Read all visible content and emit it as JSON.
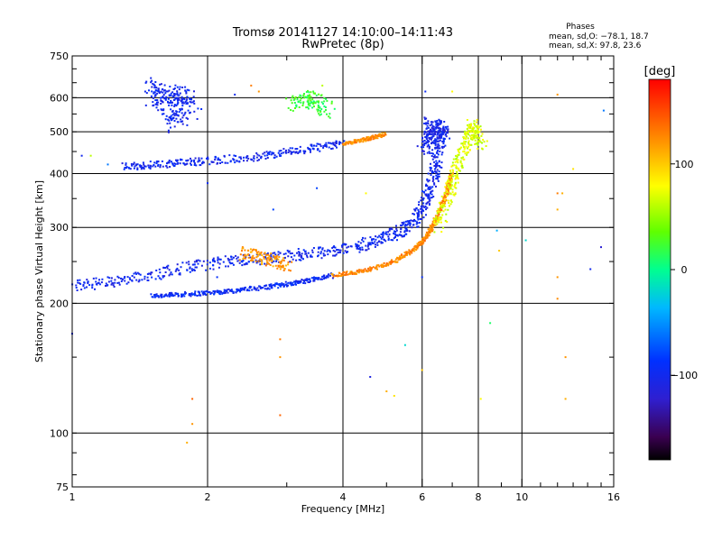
{
  "chart_data": {
    "type": "scatter",
    "title": "Tromsø 20141127 14:10:00–14:11:43",
    "subtitle": "RwPretec (8p)",
    "xlabel": "Frequency [MHz]",
    "ylabel": "Stationary phase Virtual Height [km]",
    "x_scale": "log",
    "y_scale": "log",
    "xlim": [
      1,
      16
    ],
    "ylim": [
      75,
      750
    ],
    "x_ticks": [
      1,
      2,
      4,
      6,
      8,
      10,
      16
    ],
    "y_ticks": [
      75,
      100,
      200,
      300,
      400,
      500,
      600,
      750
    ],
    "grid": true,
    "phase_stats": {
      "heading": "Phases",
      "o_line": "mean, sd,O: −78.1, 18.7",
      "x_line": "mean, sd,X:  97.8, 23.6"
    },
    "colorbar": {
      "label": "[deg]",
      "range": [
        -180,
        180
      ],
      "ticks": [
        {
          "value": 100,
          "label": "100"
        },
        {
          "value": 0,
          "label": "0"
        },
        {
          "value": -100,
          "label": "−100"
        }
      ]
    },
    "traces": [
      {
        "phase": -95,
        "spread": 0.012,
        "points": [
          [
            1.5,
            208
          ],
          [
            1.8,
            210
          ],
          [
            2.2,
            213
          ],
          [
            2.7,
            218
          ],
          [
            3.2,
            224
          ],
          [
            3.8,
            232
          ]
        ]
      },
      {
        "phase": -100,
        "spread": 0.03,
        "points": [
          [
            1.0,
            220
          ],
          [
            1.3,
            225
          ],
          [
            1.7,
            240
          ],
          [
            2.2,
            250
          ],
          [
            2.8,
            255
          ],
          [
            3.5,
            262
          ],
          [
            4.3,
            270
          ],
          [
            5.0,
            285
          ],
          [
            5.6,
            300
          ],
          [
            6.0,
            330
          ],
          [
            6.3,
            380
          ],
          [
            6.5,
            440
          ],
          [
            6.7,
            520
          ]
        ]
      },
      {
        "phase": 125,
        "spread": 0.01,
        "points": [
          [
            3.8,
            232
          ],
          [
            4.5,
            238
          ],
          [
            5.2,
            250
          ],
          [
            5.8,
            268
          ],
          [
            6.2,
            290
          ],
          [
            6.5,
            320
          ],
          [
            6.8,
            360
          ],
          [
            7.0,
            400
          ]
        ]
      },
      {
        "phase": 120,
        "spread": 0.035,
        "points": [
          [
            2.4,
            262
          ],
          [
            2.7,
            255
          ],
          [
            3.0,
            245
          ]
        ]
      },
      {
        "phase": 70,
        "spread": 0.03,
        "points": [
          [
            6.5,
            300
          ],
          [
            6.9,
            360
          ],
          [
            7.2,
            420
          ],
          [
            7.6,
            480
          ],
          [
            7.8,
            520
          ],
          [
            8.2,
            460
          ]
        ]
      },
      {
        "phase": -100,
        "spread": 0.02,
        "points": [
          [
            1.3,
            415
          ],
          [
            1.6,
            420
          ],
          [
            2.0,
            428
          ],
          [
            2.6,
            438
          ],
          [
            3.3,
            455
          ],
          [
            4.0,
            470
          ]
        ]
      },
      {
        "phase": 125,
        "spread": 0.01,
        "points": [
          [
            4.0,
            470
          ],
          [
            4.5,
            480
          ],
          [
            5.0,
            495
          ]
        ]
      },
      {
        "phase": -100,
        "spread": 0.05,
        "points": [
          [
            1.5,
            600
          ],
          [
            1.8,
            610
          ],
          [
            1.7,
            520
          ],
          [
            1.5,
            640
          ],
          [
            1.9,
            560
          ]
        ]
      },
      {
        "phase": 20,
        "spread": 0.04,
        "points": [
          [
            3.1,
            580
          ],
          [
            3.4,
            600
          ],
          [
            3.7,
            560
          ]
        ]
      },
      {
        "phase": -105,
        "spread": 0.04,
        "points": [
          [
            6.0,
            460
          ],
          [
            6.4,
            480
          ],
          [
            6.3,
            520
          ],
          [
            6.7,
            500
          ]
        ]
      }
    ],
    "isolated_points": [
      [
        1.0,
        170,
        -100
      ],
      [
        1.1,
        440,
        60
      ],
      [
        1.2,
        420,
        -60
      ],
      [
        2.0,
        380,
        -95
      ],
      [
        2.1,
        230,
        -90
      ],
      [
        2.8,
        330,
        -80
      ],
      [
        2.9,
        165,
        130
      ],
      [
        2.9,
        150,
        120
      ],
      [
        2.9,
        110,
        140
      ],
      [
        1.85,
        120,
        140
      ],
      [
        1.85,
        105,
        120
      ],
      [
        1.8,
        95,
        110
      ],
      [
        3.5,
        370,
        -80
      ],
      [
        4.5,
        360,
        80
      ],
      [
        4.6,
        135,
        -110
      ],
      [
        5.0,
        125,
        110
      ],
      [
        5.2,
        122,
        90
      ],
      [
        5.5,
        160,
        -20
      ],
      [
        6.0,
        140,
        100
      ],
      [
        8.1,
        120,
        80
      ],
      [
        8.5,
        180,
        10
      ],
      [
        8.9,
        265,
        100
      ],
      [
        8.8,
        295,
        -40
      ],
      [
        12.0,
        610,
        120
      ],
      [
        12.0,
        360,
        130
      ],
      [
        12.0,
        330,
        110
      ],
      [
        12.0,
        230,
        120
      ],
      [
        12.0,
        205,
        125
      ],
      [
        12.3,
        360,
        110
      ],
      [
        12.5,
        150,
        120
      ],
      [
        12.5,
        120,
        110
      ],
      [
        13.0,
        410,
        90
      ],
      [
        14.2,
        240,
        -100
      ],
      [
        15.0,
        270,
        -120
      ],
      [
        15.2,
        560,
        -60
      ],
      [
        7.0,
        620,
        80
      ],
      [
        6.1,
        620,
        -95
      ],
      [
        3.6,
        640,
        60
      ],
      [
        2.5,
        640,
        130
      ],
      [
        2.6,
        620,
        120
      ],
      [
        2.3,
        610,
        -100
      ],
      [
        1.2,
        230,
        -95
      ],
      [
        1.05,
        440,
        -100
      ],
      [
        10.2,
        280,
        -20
      ],
      [
        6.0,
        230,
        -90
      ]
    ]
  }
}
